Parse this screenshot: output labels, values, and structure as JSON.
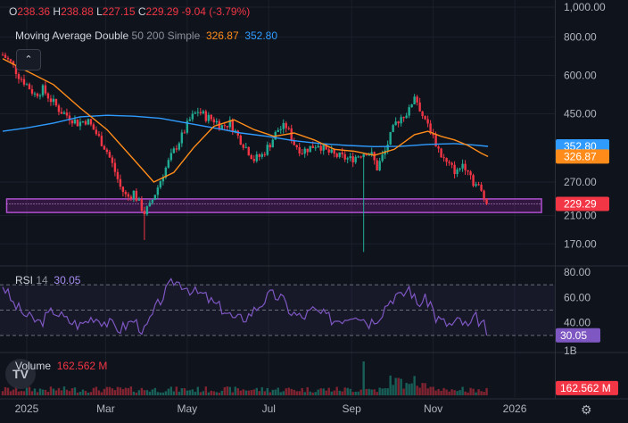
{
  "ohlc": {
    "o_label": "O",
    "o": "238.36",
    "h_label": "H",
    "h": "238.88",
    "l_label": "L",
    "l": "227.15",
    "c_label": "C",
    "c": "229.29",
    "change": "-9.04 (-3.79%)"
  },
  "ma": {
    "name": "Moving Average Double",
    "params": "50 200 Simple",
    "value_50": "326.87",
    "value_200": "352.80"
  },
  "rsi": {
    "name": "RSI",
    "params": "14",
    "value": "30.05"
  },
  "volume": {
    "name": "Volume",
    "value": "162.562 M"
  },
  "logo_text": "TV",
  "colors": {
    "background": "#0f131c",
    "up": "#22ab94",
    "down": "#f23645",
    "ma50": "#ff8c1a",
    "ma200": "#2f9bff",
    "rsi": "#7e57c2",
    "highlight_box": "#b04fd0"
  },
  "chart_data": {
    "type": "candlestick",
    "price_axis": {
      "scale": "log",
      "range": [
        150,
        1000
      ],
      "ticks": [
        "1,000.00",
        "800.00",
        "600.00",
        "450.00",
        "270.00",
        "210.00",
        "170.00"
      ],
      "tick_values": [
        1000,
        800,
        600,
        450,
        270,
        210,
        170
      ]
    },
    "time_axis": {
      "labels": [
        "2025",
        "Mar",
        "May",
        "Jul",
        "Sep",
        "Nov",
        "2026"
      ],
      "label_days": [
        0,
        59,
        120,
        181,
        243,
        304,
        365
      ],
      "range_days": [
        -20,
        395
      ]
    },
    "price_labels": [
      {
        "text": "352.80",
        "value": 352.8,
        "color": "#2f9bff"
      },
      {
        "text": "326.87",
        "value": 326.87,
        "color": "#ff8c1a"
      },
      {
        "text": "229.29",
        "value": 229.29,
        "color": "#f23645"
      }
    ],
    "highlight_zone": {
      "low": 215,
      "high": 238
    },
    "price_anchors": [
      [
        -18,
        700
      ],
      [
        -12,
        660
      ],
      [
        -6,
        600
      ],
      [
        0,
        560
      ],
      [
        6,
        520
      ],
      [
        12,
        540
      ],
      [
        18,
        500
      ],
      [
        25,
        460
      ],
      [
        32,
        440
      ],
      [
        38,
        420
      ],
      [
        45,
        430
      ],
      [
        50,
        400
      ],
      [
        55,
        370
      ],
      [
        60,
        340
      ],
      [
        65,
        300
      ],
      [
        70,
        260
      ],
      [
        75,
        240
      ],
      [
        80,
        250
      ],
      [
        84,
        230
      ],
      [
        88,
        215
      ],
      [
        92,
        225
      ],
      [
        98,
        260
      ],
      [
        104,
        300
      ],
      [
        110,
        340
      ],
      [
        116,
        380
      ],
      [
        122,
        430
      ],
      [
        128,
        460
      ],
      [
        134,
        440
      ],
      [
        140,
        430
      ],
      [
        146,
        410
      ],
      [
        152,
        420
      ],
      [
        158,
        380
      ],
      [
        164,
        350
      ],
      [
        170,
        320
      ],
      [
        176,
        330
      ],
      [
        182,
        360
      ],
      [
        188,
        400
      ],
      [
        194,
        410
      ],
      [
        200,
        360
      ],
      [
        206,
        340
      ],
      [
        212,
        350
      ],
      [
        218,
        360
      ],
      [
        224,
        340
      ],
      [
        230,
        330
      ],
      [
        236,
        325
      ],
      [
        242,
        320
      ],
      [
        248,
        330
      ],
      [
        254,
        340
      ],
      [
        258,
        330
      ],
      [
        262,
        300
      ],
      [
        268,
        340
      ],
      [
        272,
        380
      ],
      [
        276,
        420
      ],
      [
        280,
        440
      ],
      [
        286,
        460
      ],
      [
        290,
        520
      ],
      [
        294,
        470
      ],
      [
        298,
        420
      ],
      [
        302,
        400
      ],
      [
        306,
        360
      ],
      [
        310,
        330
      ],
      [
        314,
        310
      ],
      [
        318,
        300
      ],
      [
        322,
        290
      ],
      [
        326,
        310
      ],
      [
        330,
        300
      ],
      [
        334,
        270
      ],
      [
        338,
        260
      ],
      [
        342,
        240
      ],
      [
        345,
        229.29
      ]
    ],
    "ma50_series": [
      [
        -18,
        680
      ],
      [
        0,
        620
      ],
      [
        20,
        560
      ],
      [
        40,
        470
      ],
      [
        60,
        400
      ],
      [
        80,
        320
      ],
      [
        95,
        270
      ],
      [
        110,
        290
      ],
      [
        125,
        350
      ],
      [
        140,
        410
      ],
      [
        155,
        430
      ],
      [
        170,
        400
      ],
      [
        185,
        380
      ],
      [
        200,
        390
      ],
      [
        215,
        370
      ],
      [
        230,
        345
      ],
      [
        245,
        340
      ],
      [
        260,
        330
      ],
      [
        275,
        345
      ],
      [
        290,
        385
      ],
      [
        300,
        395
      ],
      [
        310,
        380
      ],
      [
        320,
        370
      ],
      [
        330,
        355
      ],
      [
        340,
        335
      ],
      [
        345,
        326.87
      ]
    ],
    "ma200_series": [
      [
        -18,
        395
      ],
      [
        0,
        405
      ],
      [
        20,
        420
      ],
      [
        40,
        440
      ],
      [
        60,
        445
      ],
      [
        80,
        442
      ],
      [
        100,
        435
      ],
      [
        120,
        420
      ],
      [
        140,
        405
      ],
      [
        160,
        390
      ],
      [
        180,
        380
      ],
      [
        200,
        368
      ],
      [
        220,
        360
      ],
      [
        240,
        355
      ],
      [
        260,
        352
      ],
      [
        280,
        353
      ],
      [
        300,
        358
      ],
      [
        320,
        360
      ],
      [
        335,
        356
      ],
      [
        345,
        352.8
      ]
    ],
    "rsi_panel": {
      "range": [
        20,
        80
      ],
      "ticks": [
        "80.00",
        "60.00",
        "40.00"
      ],
      "tick_values": [
        80,
        60,
        40
      ],
      "levels": [
        70,
        50,
        30
      ],
      "current": "30.05",
      "current_value": 30.05
    },
    "rsi_anchors": [
      [
        -18,
        70
      ],
      [
        -10,
        55
      ],
      [
        0,
        45
      ],
      [
        10,
        40
      ],
      [
        20,
        50
      ],
      [
        30,
        42
      ],
      [
        40,
        38
      ],
      [
        50,
        45
      ],
      [
        60,
        40
      ],
      [
        70,
        35
      ],
      [
        80,
        42
      ],
      [
        88,
        33
      ],
      [
        95,
        48
      ],
      [
        100,
        58
      ],
      [
        105,
        66
      ],
      [
        110,
        73
      ],
      [
        118,
        70
      ],
      [
        125,
        64
      ],
      [
        132,
        62
      ],
      [
        140,
        55
      ],
      [
        148,
        50
      ],
      [
        156,
        42
      ],
      [
        165,
        45
      ],
      [
        175,
        55
      ],
      [
        182,
        62
      ],
      [
        190,
        60
      ],
      [
        198,
        48
      ],
      [
        206,
        44
      ],
      [
        214,
        50
      ],
      [
        222,
        46
      ],
      [
        230,
        42
      ],
      [
        238,
        44
      ],
      [
        246,
        48
      ],
      [
        256,
        40
      ],
      [
        264,
        46
      ],
      [
        270,
        56
      ],
      [
        276,
        62
      ],
      [
        280,
        60
      ],
      [
        286,
        68
      ],
      [
        292,
        55
      ],
      [
        298,
        58
      ],
      [
        302,
        56
      ],
      [
        306,
        44
      ],
      [
        312,
        40
      ],
      [
        318,
        38
      ],
      [
        324,
        42
      ],
      [
        330,
        36
      ],
      [
        336,
        44
      ],
      [
        342,
        38
      ],
      [
        345,
        30.05
      ]
    ],
    "volume_panel": {
      "ticks": [
        "1B"
      ],
      "tick_values": [
        1000
      ],
      "unit": "M",
      "current": "162.562 M",
      "current_value": 162.562
    }
  }
}
